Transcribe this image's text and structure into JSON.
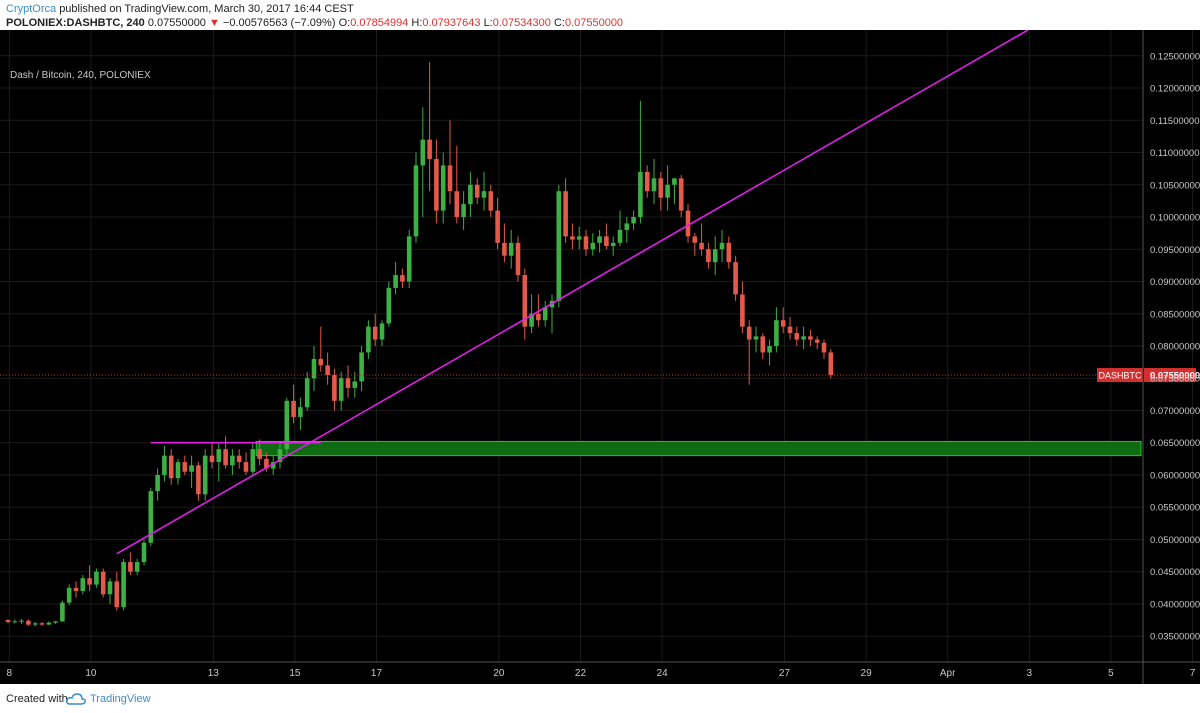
{
  "header": {
    "author": "CryptOrca",
    "published": "published on TradingView.com, March 30, 2017 16:44 CEST",
    "symbol": "POLONIEX:DASHBTC, 240",
    "last": "0.07550000",
    "change": "−0.00576563 (−7.09%)",
    "o_label": "O:",
    "o_value": "0.07854994",
    "h_label": "H:",
    "h_value": "0.07937643",
    "l_label": "L:",
    "l_value": "0.07534300",
    "c_label": "C:",
    "c_value": "0.07550000"
  },
  "legend": "Dash / Bitcoin, 240, POLONIEX",
  "footer": {
    "created": "Created with",
    "brand": "TradingView"
  },
  "colors": {
    "up": "#3cb043",
    "down": "#e35a4b",
    "background": "#000000",
    "grid": "#1b1b1b",
    "trendline": "#e020e8",
    "zone": "#0f6b12",
    "zone_border": "#2fbf38",
    "price_tag": "#d32f2f"
  },
  "chart_data": {
    "type": "candlestick",
    "title": "Dash / Bitcoin, 240, POLONIEX",
    "ylim": [
      0.031,
      0.129
    ],
    "y_ticks": [
      "0.03500000",
      "0.04000000",
      "0.04500000",
      "0.05000000",
      "0.05500000",
      "0.06000000",
      "0.06500000",
      "0.07000000",
      "0.07500000",
      "0.08000000",
      "0.08500000",
      "0.09000000",
      "0.09500000",
      "0.10000000",
      "0.10500000",
      "0.11000000",
      "0.11500000",
      "0.12000000",
      "0.12500000"
    ],
    "x_ticks": [
      "8",
      "10",
      "13",
      "15",
      "17",
      "20",
      "22",
      "24",
      "27",
      "29",
      "Apr",
      "3",
      "5",
      "7"
    ],
    "last_price_label": "DASHBTC",
    "last_price": "0.07550000",
    "candles": [
      [
        0.0375,
        0.0376,
        0.037,
        0.0372
      ],
      [
        0.0372,
        0.0376,
        0.037,
        0.0373
      ],
      [
        0.0373,
        0.0377,
        0.0369,
        0.0374
      ],
      [
        0.0374,
        0.0376,
        0.0366,
        0.0368
      ],
      [
        0.0368,
        0.0372,
        0.0365,
        0.037
      ],
      [
        0.037,
        0.0372,
        0.0366,
        0.0368
      ],
      [
        0.0368,
        0.0373,
        0.0367,
        0.0371
      ],
      [
        0.0371,
        0.0374,
        0.0369,
        0.0373
      ],
      [
        0.0373,
        0.0405,
        0.0372,
        0.0402
      ],
      [
        0.0402,
        0.043,
        0.0398,
        0.0425
      ],
      [
        0.0425,
        0.0435,
        0.041,
        0.042
      ],
      [
        0.042,
        0.0445,
        0.0415,
        0.044
      ],
      [
        0.044,
        0.046,
        0.042,
        0.043
      ],
      [
        0.043,
        0.0455,
        0.0425,
        0.045
      ],
      [
        0.045,
        0.0455,
        0.041,
        0.0415
      ],
      [
        0.0415,
        0.044,
        0.04,
        0.0435
      ],
      [
        0.0435,
        0.045,
        0.039,
        0.0395
      ],
      [
        0.0395,
        0.047,
        0.039,
        0.0465
      ],
      [
        0.0465,
        0.048,
        0.0445,
        0.045
      ],
      [
        0.045,
        0.047,
        0.0445,
        0.0465
      ],
      [
        0.0465,
        0.05,
        0.046,
        0.0495
      ],
      [
        0.0495,
        0.058,
        0.049,
        0.0575
      ],
      [
        0.0575,
        0.061,
        0.056,
        0.06
      ],
      [
        0.06,
        0.0645,
        0.059,
        0.063
      ],
      [
        0.063,
        0.064,
        0.0585,
        0.0595
      ],
      [
        0.0595,
        0.0625,
        0.0585,
        0.062
      ],
      [
        0.062,
        0.063,
        0.06,
        0.0605
      ],
      [
        0.0605,
        0.063,
        0.058,
        0.0615
      ],
      [
        0.0615,
        0.062,
        0.056,
        0.057
      ],
      [
        0.057,
        0.064,
        0.056,
        0.063
      ],
      [
        0.063,
        0.065,
        0.061,
        0.062
      ],
      [
        0.062,
        0.065,
        0.059,
        0.064
      ],
      [
        0.064,
        0.066,
        0.061,
        0.0615
      ],
      [
        0.0615,
        0.064,
        0.06,
        0.063
      ],
      [
        0.063,
        0.064,
        0.061,
        0.062
      ],
      [
        0.062,
        0.0635,
        0.06,
        0.0605
      ],
      [
        0.0605,
        0.065,
        0.06,
        0.064
      ],
      [
        0.064,
        0.0655,
        0.0615,
        0.0625
      ],
      [
        0.0625,
        0.0635,
        0.0605,
        0.061
      ],
      [
        0.061,
        0.063,
        0.06,
        0.062
      ],
      [
        0.062,
        0.065,
        0.061,
        0.064
      ],
      [
        0.064,
        0.072,
        0.063,
        0.0715
      ],
      [
        0.0715,
        0.074,
        0.068,
        0.069
      ],
      [
        0.069,
        0.072,
        0.067,
        0.0705
      ],
      [
        0.0705,
        0.076,
        0.07,
        0.075
      ],
      [
        0.075,
        0.08,
        0.073,
        0.078
      ],
      [
        0.078,
        0.083,
        0.076,
        0.077
      ],
      [
        0.077,
        0.079,
        0.074,
        0.0755
      ],
      [
        0.0755,
        0.0765,
        0.07,
        0.0715
      ],
      [
        0.0715,
        0.076,
        0.07,
        0.075
      ],
      [
        0.075,
        0.077,
        0.072,
        0.0735
      ],
      [
        0.0735,
        0.076,
        0.072,
        0.0745
      ],
      [
        0.0745,
        0.08,
        0.073,
        0.079
      ],
      [
        0.079,
        0.084,
        0.078,
        0.083
      ],
      [
        0.083,
        0.085,
        0.08,
        0.081
      ],
      [
        0.081,
        0.084,
        0.08,
        0.0835
      ],
      [
        0.0835,
        0.09,
        0.083,
        0.089
      ],
      [
        0.089,
        0.093,
        0.088,
        0.091
      ],
      [
        0.091,
        0.092,
        0.089,
        0.09
      ],
      [
        0.09,
        0.098,
        0.089,
        0.097
      ],
      [
        0.097,
        0.11,
        0.096,
        0.108
      ],
      [
        0.108,
        0.117,
        0.1,
        0.112
      ],
      [
        0.112,
        0.124,
        0.104,
        0.109
      ],
      [
        0.109,
        0.112,
        0.099,
        0.101
      ],
      [
        0.101,
        0.11,
        0.099,
        0.108
      ],
      [
        0.108,
        0.115,
        0.102,
        0.104
      ],
      [
        0.104,
        0.111,
        0.099,
        0.1
      ],
      [
        0.1,
        0.104,
        0.098,
        0.102
      ],
      [
        0.102,
        0.107,
        0.1,
        0.105
      ],
      [
        0.105,
        0.106,
        0.102,
        0.103
      ],
      [
        0.103,
        0.107,
        0.101,
        0.104
      ],
      [
        0.104,
        0.105,
        0.1,
        0.101
      ],
      [
        0.101,
        0.103,
        0.095,
        0.096
      ],
      [
        0.096,
        0.099,
        0.093,
        0.094
      ],
      [
        0.094,
        0.098,
        0.092,
        0.096
      ],
      [
        0.096,
        0.097,
        0.09,
        0.091
      ],
      [
        0.091,
        0.092,
        0.081,
        0.083
      ],
      [
        0.083,
        0.088,
        0.082,
        0.085
      ],
      [
        0.085,
        0.088,
        0.083,
        0.084
      ],
      [
        0.084,
        0.087,
        0.083,
        0.086
      ],
      [
        0.086,
        0.088,
        0.082,
        0.087
      ],
      [
        0.087,
        0.105,
        0.086,
        0.104
      ],
      [
        0.104,
        0.106,
        0.096,
        0.097
      ],
      [
        0.097,
        0.099,
        0.095,
        0.0965
      ],
      [
        0.0965,
        0.0985,
        0.095,
        0.097
      ],
      [
        0.097,
        0.098,
        0.094,
        0.095
      ],
      [
        0.095,
        0.0975,
        0.094,
        0.096
      ],
      [
        0.096,
        0.098,
        0.0945,
        0.097
      ],
      [
        0.097,
        0.099,
        0.095,
        0.0955
      ],
      [
        0.0955,
        0.097,
        0.094,
        0.096
      ],
      [
        0.096,
        0.101,
        0.0955,
        0.098
      ],
      [
        0.098,
        0.1,
        0.096,
        0.099
      ],
      [
        0.099,
        0.101,
        0.098,
        0.1
      ],
      [
        0.1,
        0.118,
        0.099,
        0.107
      ],
      [
        0.107,
        0.108,
        0.103,
        0.104
      ],
      [
        0.104,
        0.109,
        0.102,
        0.106
      ],
      [
        0.106,
        0.107,
        0.101,
        0.103
      ],
      [
        0.103,
        0.108,
        0.101,
        0.105
      ],
      [
        0.105,
        0.106,
        0.102,
        0.106
      ],
      [
        0.106,
        0.1065,
        0.1,
        0.101
      ],
      [
        0.101,
        0.102,
        0.096,
        0.097
      ],
      [
        0.097,
        0.0975,
        0.094,
        0.096
      ],
      [
        0.096,
        0.099,
        0.094,
        0.095
      ],
      [
        0.095,
        0.096,
        0.092,
        0.093
      ],
      [
        0.093,
        0.097,
        0.091,
        0.095
      ],
      [
        0.095,
        0.098,
        0.093,
        0.096
      ],
      [
        0.096,
        0.097,
        0.092,
        0.093
      ],
      [
        0.093,
        0.094,
        0.087,
        0.088
      ],
      [
        0.088,
        0.09,
        0.082,
        0.083
      ],
      [
        0.083,
        0.084,
        0.074,
        0.081
      ],
      [
        0.081,
        0.083,
        0.079,
        0.0815
      ],
      [
        0.0815,
        0.082,
        0.078,
        0.079
      ],
      [
        0.079,
        0.081,
        0.077,
        0.08
      ],
      [
        0.08,
        0.086,
        0.079,
        0.084
      ],
      [
        0.084,
        0.086,
        0.082,
        0.083
      ],
      [
        0.083,
        0.0845,
        0.081,
        0.082
      ],
      [
        0.082,
        0.083,
        0.08,
        0.081
      ],
      [
        0.081,
        0.083,
        0.0795,
        0.0815
      ],
      [
        0.0815,
        0.0825,
        0.08,
        0.081
      ],
      [
        0.081,
        0.0815,
        0.0795,
        0.0805
      ],
      [
        0.0805,
        0.081,
        0.078,
        0.079
      ],
      [
        0.079,
        0.0795,
        0.075,
        0.0755
      ]
    ],
    "trendline": [
      [
        16,
        0.0478
      ],
      [
        150,
        0.129
      ]
    ],
    "resistance_line": [
      [
        21,
        0.065
      ],
      [
        46,
        0.065
      ]
    ],
    "support_zone": [
      0.063,
      0.0652
    ]
  }
}
